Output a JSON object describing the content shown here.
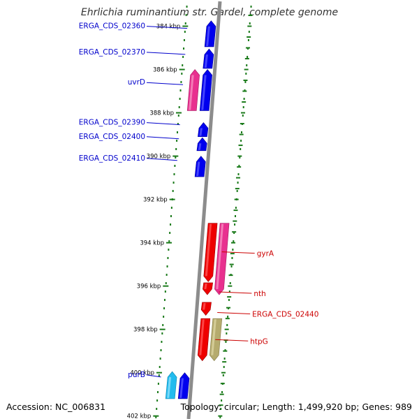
{
  "title": "Ehrlichia ruminantium str. Gardel, complete genome",
  "accession": "Accession: NC_006831",
  "summary": "Topology: circular; Length: 1,499,920 bp; Genes: 989",
  "colors": {
    "backbone": "#8c8c8c",
    "tick": "#1a7a1a",
    "cds_forward": "#0000ee",
    "cds_reverse": "#ee0000",
    "gene_forward": "#e8308f",
    "gene_reverse": "#e8308f",
    "trna_like": "#b5ab6e",
    "cyan_feature": "#22bbee",
    "label_forward": "#0000cc",
    "label_reverse": "#cc0000"
  },
  "chart_data": {
    "type": "linear-genome-map",
    "range_kbp": [
      383.5,
      402.3
    ],
    "tick_labels": [
      {
        "kbp": 384,
        "label": "384 kbp"
      },
      {
        "kbp": 386,
        "label": "386 kbp"
      },
      {
        "kbp": 388,
        "label": "388 kbp"
      },
      {
        "kbp": 390,
        "label": "390 kbp"
      },
      {
        "kbp": 392,
        "label": "392 kbp"
      },
      {
        "kbp": 394,
        "label": "394 kbp"
      },
      {
        "kbp": 396,
        "label": "396 kbp"
      },
      {
        "kbp": 398,
        "label": "398 kbp"
      },
      {
        "kbp": 400,
        "label": "400 kbp"
      },
      {
        "kbp": 402,
        "label": "402 kbp"
      }
    ],
    "features": [
      {
        "id": "f1",
        "start": 383.75,
        "end": 384.95,
        "strand": "+",
        "track": "cds",
        "color": "cds_forward"
      },
      {
        "id": "f2",
        "start": 385.05,
        "end": 385.95,
        "strand": "+",
        "track": "cds",
        "color": "cds_forward"
      },
      {
        "id": "f3",
        "start": 386.0,
        "end": 387.9,
        "strand": "+",
        "track": "cds",
        "color": "cds_forward"
      },
      {
        "id": "f4",
        "start": 386.0,
        "end": 387.9,
        "strand": "+",
        "track": "gene",
        "color": "gene_forward"
      },
      {
        "id": "f5",
        "start": 388.45,
        "end": 389.1,
        "strand": "+",
        "track": "cds",
        "color": "cds_forward"
      },
      {
        "id": "f6",
        "start": 389.15,
        "end": 389.75,
        "strand": "+",
        "track": "cds",
        "color": "cds_forward"
      },
      {
        "id": "f7",
        "start": 390.0,
        "end": 390.95,
        "strand": "+",
        "track": "cds",
        "color": "cds_forward"
      },
      {
        "id": "f8",
        "start": 393.1,
        "end": 395.8,
        "strand": "-",
        "track": "cds",
        "color": "cds_reverse"
      },
      {
        "id": "f9",
        "start": 393.1,
        "end": 396.4,
        "strand": "-",
        "track": "gene",
        "color": "gene_reverse"
      },
      {
        "id": "f10",
        "start": 395.85,
        "end": 396.4,
        "strand": "-",
        "track": "cds",
        "color": "cds_reverse"
      },
      {
        "id": "f11",
        "start": 396.75,
        "end": 397.35,
        "strand": "-",
        "track": "cds",
        "color": "cds_reverse"
      },
      {
        "id": "f12",
        "start": 397.5,
        "end": 399.45,
        "strand": "-",
        "track": "cds",
        "color": "cds_reverse"
      },
      {
        "id": "f13",
        "start": 397.5,
        "end": 399.45,
        "strand": "-",
        "track": "gene",
        "color": "trna_like"
      },
      {
        "id": "f14",
        "start": 400.0,
        "end": 401.2,
        "strand": "+",
        "track": "cds",
        "color": "cds_forward"
      },
      {
        "id": "f15",
        "start": 399.95,
        "end": 401.2,
        "strand": "+",
        "track": "gene",
        "color": "cyan_feature"
      }
    ],
    "labels": [
      {
        "text": "ERGA_CDS_02360",
        "side": "left",
        "kbp": 384.1,
        "color": "label_forward"
      },
      {
        "text": "ERGA_CDS_02370",
        "side": "left",
        "kbp": 385.3,
        "color": "label_forward"
      },
      {
        "text": "uvrD",
        "side": "left",
        "kbp": 386.7,
        "color": "label_forward"
      },
      {
        "text": "ERGA_CDS_02390",
        "side": "left",
        "kbp": 388.55,
        "color": "label_forward"
      },
      {
        "text": "ERGA_CDS_02400",
        "side": "left",
        "kbp": 389.2,
        "color": "label_forward"
      },
      {
        "text": "ERGA_CDS_02410",
        "side": "left",
        "kbp": 390.2,
        "color": "label_forward"
      },
      {
        "text": "gyrA",
        "side": "right",
        "kbp": 394.55,
        "color": "label_reverse"
      },
      {
        "text": "nth",
        "side": "right",
        "kbp": 396.4,
        "color": "label_reverse"
      },
      {
        "text": "ERGA_CDS_02440",
        "side": "right",
        "kbp": 397.35,
        "color": "label_reverse"
      },
      {
        "text": "htpG",
        "side": "right",
        "kbp": 398.6,
        "color": "label_reverse"
      },
      {
        "text": "purB",
        "side": "left",
        "kbp": 400.2,
        "color": "label_forward"
      }
    ]
  }
}
